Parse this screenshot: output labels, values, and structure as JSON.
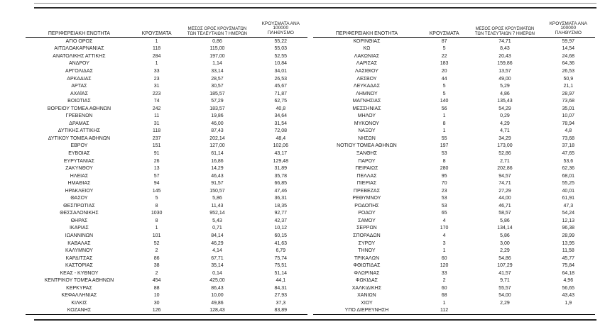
{
  "headers": {
    "region": "ΠΕΡΙΦΕΡΕΙΑΚΗ ΕΝΟΤΗΤΑ",
    "cases": "ΚΡΟΥΣΜΑΤΑ",
    "avg7_line1": "ΜΕΣΟΣ ΟΡΟΣ ΚΡΟΥΣΜΑΤΩΝ",
    "avg7_line2": "ΤΩΝ ΤΕΛΕΥΤΑΙΩΝ 7 ΗΜΕΡΩΝ",
    "per100k_line1": "ΚΡΟΥΣΜΑΤΑ ΑΝΑ 100000",
    "per100k_line2": "ΠΛΗΘΥΣΜΟ"
  },
  "left_table": {
    "rows": [
      [
        "ΑΓΙΟ ΟΡΟΣ",
        "1",
        "0,86",
        "55,22"
      ],
      [
        "ΑΙΤΩΛΟΑΚΑΡΝΑΝΙΑΣ",
        "118",
        "115,00",
        "55,03"
      ],
      [
        "ΑΝΑΤΟΛΙΚΗΣ ΑΤΤΙΚΗΣ",
        "284",
        "197,00",
        "52,55"
      ],
      [
        "ΑΝΔΡΟΥ",
        "1",
        "1,14",
        "10,84"
      ],
      [
        "ΑΡΓΟΛΙΔΑΣ",
        "33",
        "33,14",
        "34,01"
      ],
      [
        "ΑΡΚΑΔΙΑΣ",
        "23",
        "28,57",
        "26,53"
      ],
      [
        "ΑΡΤΑΣ",
        "31",
        "30,57",
        "45,67"
      ],
      [
        "ΑΧΑΪΑΣ",
        "223",
        "185,57",
        "71,87"
      ],
      [
        "ΒΟΙΩΤΙΑΣ",
        "74",
        "57,29",
        "62,75"
      ],
      [
        "ΒΟΡΕΙΟΥ ΤΟΜΕΑ ΑΘΗΝΩΝ",
        "242",
        "183,57",
        "40,8"
      ],
      [
        "ΓΡΕΒΕΝΩΝ",
        "11",
        "19,86",
        "34,64"
      ],
      [
        "ΔΡΑΜΑΣ",
        "31",
        "46,00",
        "31,54"
      ],
      [
        "ΔΥΤΙΚΗΣ ΑΤΤΙΚΗΣ",
        "118",
        "87,43",
        "72,08"
      ],
      [
        "ΔΥΤΙΚΟΥ ΤΟΜΕΑ ΑΘΗΝΩΝ",
        "237",
        "202,14",
        "48,4"
      ],
      [
        "ΕΒΡΟΥ",
        "151",
        "127,00",
        "102,06"
      ],
      [
        "ΕΥΒΟΙΑΣ",
        "91",
        "61,14",
        "43,17"
      ],
      [
        "ΕΥΡΥΤΑΝΙΑΣ",
        "26",
        "16,86",
        "129,48"
      ],
      [
        "ΖΑΚΥΝΘΟΥ",
        "13",
        "14,29",
        "31,89"
      ],
      [
        "ΗΛΕΙΑΣ",
        "57",
        "46,43",
        "35,78"
      ],
      [
        "ΗΜΑΘΙΑΣ",
        "94",
        "91,57",
        "66,85"
      ],
      [
        "ΗΡΑΚΛΕΙΟΥ",
        "145",
        "150,57",
        "47,46"
      ],
      [
        "ΘΑΣΟΥ",
        "5",
        "5,86",
        "36,31"
      ],
      [
        "ΘΕΣΠΡΩΤΙΑΣ",
        "8",
        "11,43",
        "18,35"
      ],
      [
        "ΘΕΣΣΑΛΟΝΙΚΗΣ",
        "1030",
        "952,14",
        "92,77"
      ],
      [
        "ΘΗΡΑΣ",
        "8",
        "5,43",
        "42,37"
      ],
      [
        "ΙΚΑΡΙΑΣ",
        "1",
        "0,71",
        "10,12"
      ],
      [
        "ΙΩΑΝΝΙΝΩΝ",
        "101",
        "84,14",
        "60,15"
      ],
      [
        "ΚΑΒΑΛΑΣ",
        "52",
        "46,29",
        "41,63"
      ],
      [
        "ΚΑΛΥΜΝΟΥ",
        "2",
        "4,14",
        "6,79"
      ],
      [
        "ΚΑΡΔΙΤΣΑΣ",
        "86",
        "67,71",
        "75,74"
      ],
      [
        "ΚΑΣΤΟΡΙΑΣ",
        "38",
        "35,14",
        "75,51"
      ],
      [
        "ΚΕΑΣ - ΚΥΘΝΟΥ",
        "2",
        "0,14",
        "51,14"
      ],
      [
        "ΚΕΝΤΡΙΚΟΥ ΤΟΜΕΑ ΑΘΗΝΩΝ",
        "454",
        "425,00",
        "44,1"
      ],
      [
        "ΚΕΡΚΥΡΑΣ",
        "88",
        "86,43",
        "84,31"
      ],
      [
        "ΚΕΦΑΛΛΗΝΙΑΣ",
        "10",
        "10,00",
        "27,93"
      ],
      [
        "ΚΙΛΚΙΣ",
        "30",
        "49,86",
        "37,3"
      ],
      [
        "ΚΟΖΑΝΗΣ",
        "126",
        "128,43",
        "83,89"
      ]
    ]
  },
  "right_table": {
    "rows": [
      [
        "ΚΟΡΙΝΘΙΑΣ",
        "87",
        "74,71",
        "59,97"
      ],
      [
        "ΚΩ",
        "5",
        "8,43",
        "14,54"
      ],
      [
        "ΛΑΚΩΝΙΑΣ",
        "22",
        "20,43",
        "24,68"
      ],
      [
        "ΛΑΡΙΣΑΣ",
        "183",
        "159,86",
        "64,36"
      ],
      [
        "ΛΑΣΙΘΙΟΥ",
        "20",
        "13,57",
        "26,53"
      ],
      [
        "ΛΕΣΒΟΥ",
        "44",
        "49,00",
        "50,9"
      ],
      [
        "ΛΕΥΚΑΔΑΣ",
        "5",
        "5,29",
        "21,1"
      ],
      [
        "ΛΗΜΝΟΥ",
        "5",
        "4,86",
        "28,97"
      ],
      [
        "ΜΑΓΝΗΣΙΑΣ",
        "140",
        "135,43",
        "73,68"
      ],
      [
        "ΜΕΣΣΗΝΙΑΣ",
        "56",
        "54,29",
        "35,01"
      ],
      [
        "ΜΗΛΟΥ",
        "1",
        "0,29",
        "10,07"
      ],
      [
        "ΜΥΚΟΝΟΥ",
        "8",
        "4,29",
        "78,94"
      ],
      [
        "ΝΑΞΟΥ",
        "1",
        "4,71",
        "4,8"
      ],
      [
        "ΝΗΣΩΝ",
        "55",
        "34,29",
        "73,68"
      ],
      [
        "ΝΟΤΙΟΥ ΤΟΜΕΑ ΑΘΗΝΩΝ",
        "197",
        "173,00",
        "37,18"
      ],
      [
        "ΞΑΝΘΗΣ",
        "53",
        "52,86",
        "47,65"
      ],
      [
        "ΠΑΡΟΥ",
        "8",
        "2,71",
        "53,6"
      ],
      [
        "ΠΕΙΡΑΙΩΣ",
        "280",
        "202,86",
        "62,36"
      ],
      [
        "ΠΕΛΛΑΣ",
        "95",
        "94,57",
        "68,01"
      ],
      [
        "ΠΙΕΡΙΑΣ",
        "70",
        "74,71",
        "55,25"
      ],
      [
        "ΠΡΕΒΕΖΑΣ",
        "23",
        "27,29",
        "40,01"
      ],
      [
        "ΡΕΘΥΜΝΟΥ",
        "53",
        "44,00",
        "61,91"
      ],
      [
        "ΡΟΔΟΠΗΣ",
        "53",
        "46,71",
        "47,3"
      ],
      [
        "ΡΟΔΟΥ",
        "65",
        "58,57",
        "54,24"
      ],
      [
        "ΣΑΜΟΥ",
        "4",
        "5,86",
        "12,13"
      ],
      [
        "ΣΕΡΡΩΝ",
        "170",
        "134,14",
        "96,38"
      ],
      [
        "ΣΠΟΡΑΔΩΝ",
        "4",
        "5,86",
        "28,99"
      ],
      [
        "ΣΥΡΟΥ",
        "3",
        "3,00",
        "13,95"
      ],
      [
        "ΤΗΝΟΥ",
        "1",
        "2,29",
        "11,58"
      ],
      [
        "ΤΡΙΚΑΛΩΝ",
        "60",
        "54,86",
        "45,77"
      ],
      [
        "ΦΘΙΩΤΙΔΑΣ",
        "120",
        "107,29",
        "75,84"
      ],
      [
        "ΦΛΩΡΙΝΑΣ",
        "33",
        "41,57",
        "64,18"
      ],
      [
        "ΦΩΚΙΔΑΣ",
        "2",
        "9,71",
        "4,96"
      ],
      [
        "ΧΑΛΚΙΔΙΚΗΣ",
        "60",
        "55,57",
        "56,65"
      ],
      [
        "ΧΑΝΙΩΝ",
        "68",
        "54,00",
        "43,43"
      ],
      [
        "ΧΙΟΥ",
        "1",
        "2,29",
        "1,9"
      ],
      [
        "ΥΠΟ ΔΙΕΡΕΥΝΗΣΗ",
        "112",
        "",
        ""
      ]
    ]
  }
}
